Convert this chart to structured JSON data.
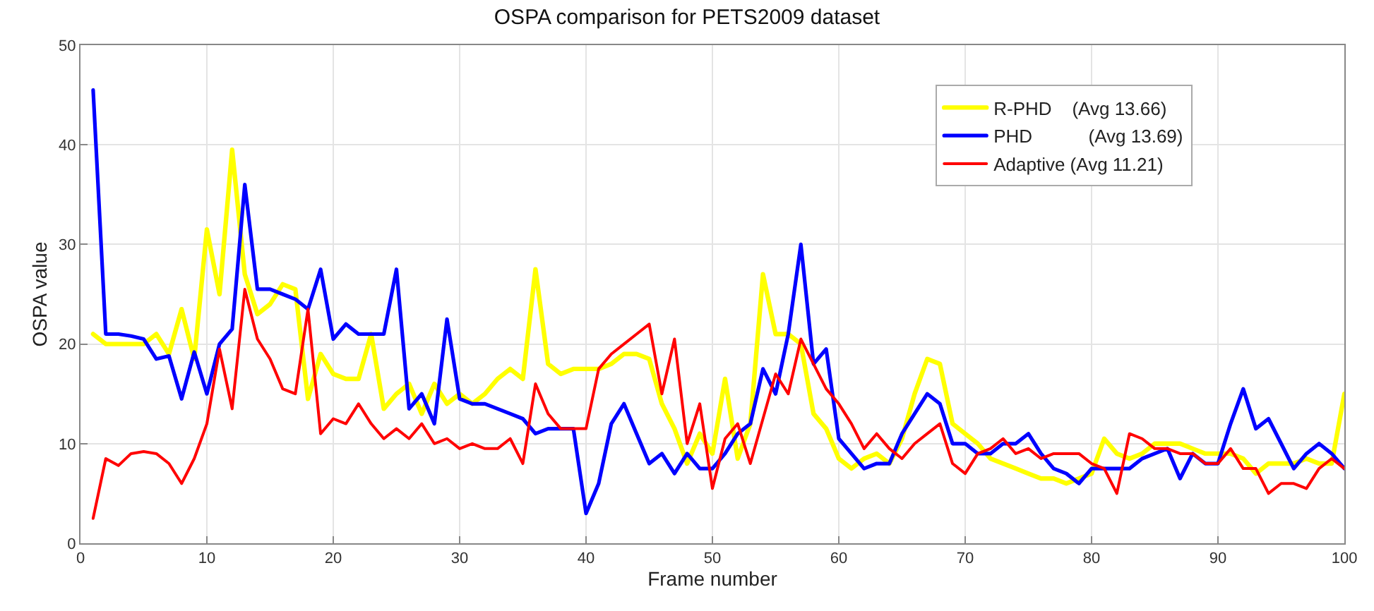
{
  "chart_data": {
    "type": "line",
    "title": "OSPA comparison for PETS2009 dataset",
    "xlabel": "Frame number",
    "ylabel": "OSPA value",
    "x": [
      1,
      2,
      3,
      4,
      5,
      6,
      7,
      8,
      9,
      10,
      11,
      12,
      13,
      14,
      15,
      16,
      17,
      18,
      19,
      20,
      21,
      22,
      23,
      24,
      25,
      26,
      27,
      28,
      29,
      30,
      31,
      32,
      33,
      34,
      35,
      36,
      37,
      38,
      39,
      40,
      41,
      42,
      43,
      44,
      45,
      46,
      47,
      48,
      49,
      50,
      51,
      52,
      53,
      54,
      55,
      56,
      57,
      58,
      59,
      60,
      61,
      62,
      63,
      64,
      65,
      66,
      67,
      68,
      69,
      70,
      71,
      72,
      73,
      74,
      75,
      76,
      77,
      78,
      79,
      80,
      81,
      82,
      83,
      84,
      85,
      86,
      87,
      88,
      89,
      90,
      91,
      92,
      93,
      94,
      95,
      96,
      97,
      98,
      99,
      100
    ],
    "series": [
      {
        "name": "R-PHD    (Avg 13.66)",
        "color": "#ffff00",
        "values": [
          21,
          20,
          20,
          20,
          20,
          21,
          19,
          23.5,
          18.5,
          31.5,
          25,
          39.5,
          27,
          23,
          24,
          26,
          25.5,
          14.5,
          19,
          17,
          16.5,
          16.5,
          21,
          13.5,
          15,
          16,
          13,
          16,
          14,
          15,
          14,
          15,
          16.5,
          17.5,
          16.5,
          27.5,
          18,
          17,
          17.5,
          17.5,
          17.5,
          18,
          19,
          19,
          18.5,
          14,
          11.5,
          8,
          11,
          9,
          16.5,
          8.5,
          12,
          27,
          21,
          21,
          20,
          13,
          11.5,
          8.5,
          7.5,
          8.5,
          9,
          8,
          10.5,
          15,
          18.5,
          18,
          12,
          11,
          10,
          8.5,
          8,
          7.5,
          7,
          6.5,
          6.5,
          6,
          6.5,
          7,
          10.5,
          9,
          8.5,
          9,
          10,
          10,
          10,
          9.5,
          9,
          9,
          9,
          8.5,
          7,
          8,
          8,
          8,
          8.5,
          8,
          8,
          15
        ]
      },
      {
        "name": "PHD           (Avg 13.69)",
        "color": "#0000ff",
        "values": [
          45.5,
          21,
          21,
          20.8,
          20.5,
          18.5,
          18.8,
          14.5,
          19.2,
          15,
          20,
          21.5,
          36,
          25.5,
          25.5,
          25,
          24.5,
          23.5,
          27.5,
          20.5,
          22,
          21,
          21,
          21,
          27.5,
          13.5,
          15,
          12,
          22.5,
          14.5,
          14,
          14,
          13.5,
          13,
          12.5,
          11,
          11.5,
          11.5,
          11.5,
          3,
          6,
          12,
          14,
          11,
          8,
          9,
          7,
          9,
          7.5,
          7.5,
          9,
          11,
          12,
          17.5,
          15,
          21,
          30,
          18,
          19.5,
          10.5,
          9,
          7.5,
          8,
          8,
          11,
          13,
          15,
          14,
          10,
          10,
          9,
          9,
          10,
          10,
          11,
          9,
          7.5,
          7,
          6,
          7.5,
          7.5,
          7.5,
          7.5,
          8.5,
          9,
          9.5,
          6.5,
          9,
          8,
          8,
          12,
          15.5,
          11.5,
          12.5,
          10,
          7.5,
          9,
          10,
          9,
          7.5
        ]
      },
      {
        "name": "Adaptive (Avg 11.21)",
        "color": "#ff0000",
        "values": [
          2.5,
          8.5,
          7.8,
          9,
          9.2,
          9,
          8,
          6,
          8.5,
          12,
          19.5,
          13.5,
          25.5,
          20.5,
          18.5,
          15.5,
          15,
          23.5,
          11,
          12.5,
          12,
          14,
          12,
          10.5,
          11.5,
          10.5,
          12,
          10,
          10.5,
          9.5,
          10,
          9.5,
          9.5,
          10.5,
          8,
          16,
          13,
          11.5,
          11.5,
          11.5,
          17.5,
          19,
          20,
          21,
          22,
          15,
          20.5,
          10,
          14,
          5.5,
          10.5,
          12,
          8,
          12.5,
          17,
          15,
          20.5,
          18,
          15.5,
          14,
          12,
          9.5,
          11,
          9.5,
          8.5,
          10,
          11,
          12,
          8,
          7,
          9,
          9.5,
          10.5,
          9,
          9.5,
          8.5,
          9,
          9,
          9,
          8,
          7.5,
          5,
          11,
          10.5,
          9.5,
          9.5,
          9,
          9,
          8,
          8,
          9.5,
          7.5,
          7.5,
          5,
          6,
          6,
          5.5,
          7.5,
          8.5,
          7.5
        ]
      }
    ],
    "xlim": [
      0,
      100
    ],
    "xticks": [
      0,
      10,
      20,
      30,
      40,
      50,
      60,
      70,
      80,
      90,
      100
    ],
    "ylim": [
      0,
      50
    ],
    "yticks": [
      0,
      10,
      20,
      30,
      40,
      50
    ],
    "grid": true,
    "legend": "top right",
    "marker": "none",
    "line_style": "solid"
  }
}
